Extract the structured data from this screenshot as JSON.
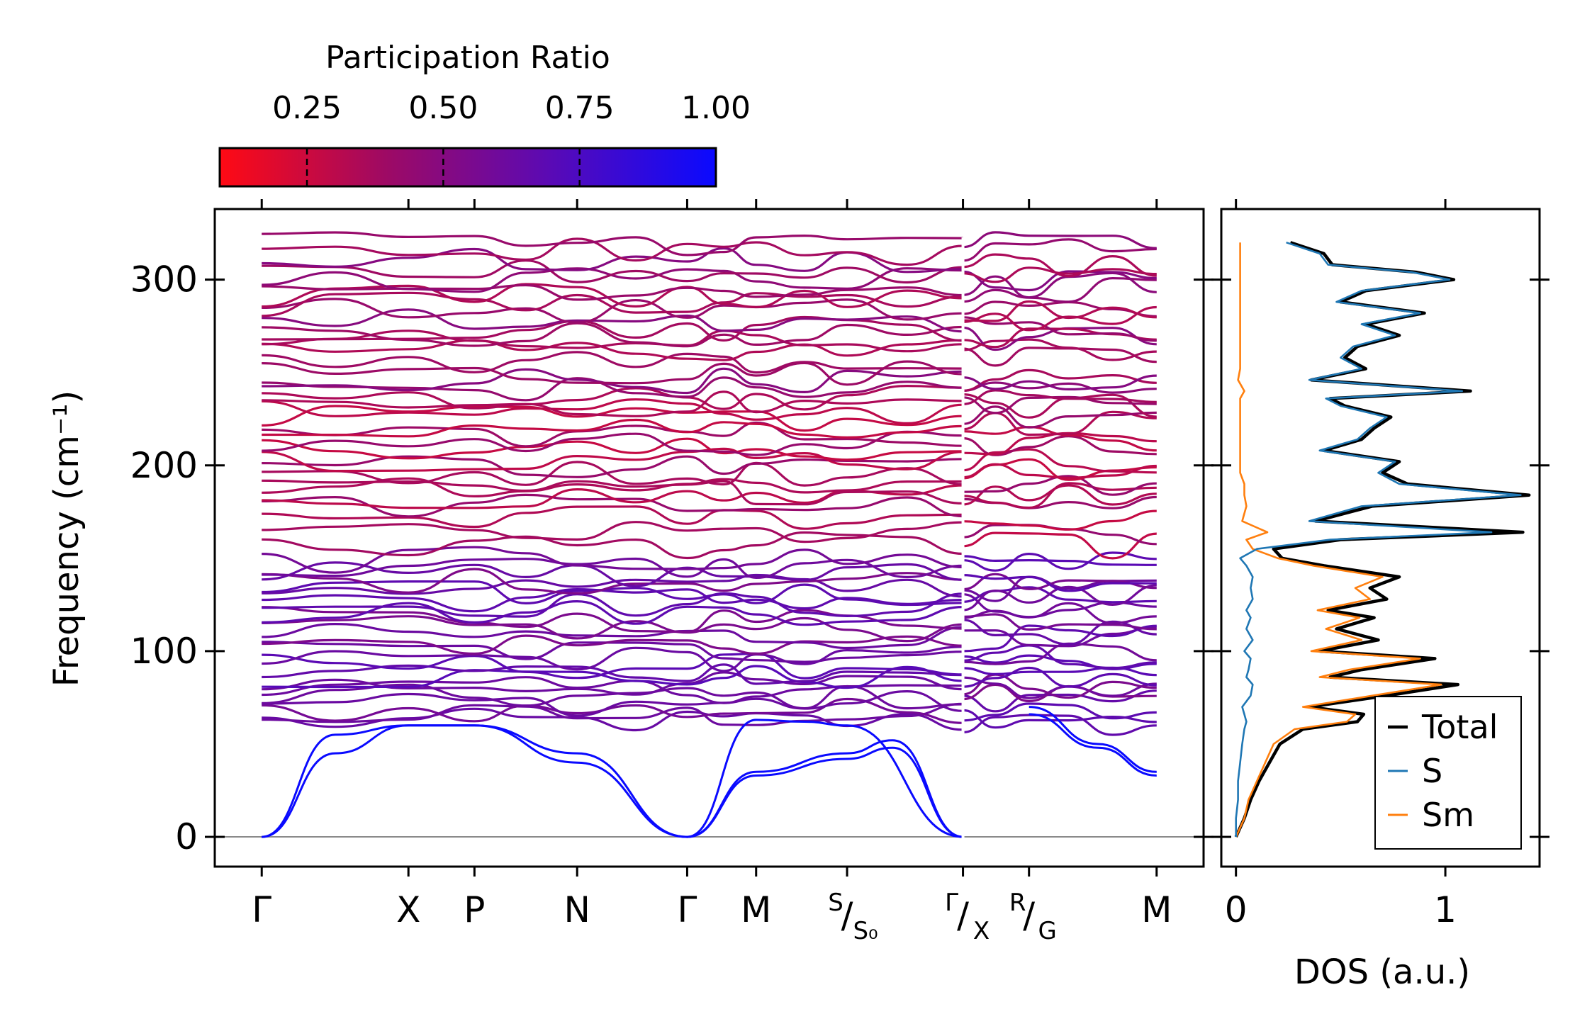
{
  "chart_data": [
    {
      "type": "colorbar",
      "title": "Participation Ratio",
      "range": [
        0.09,
        1.0
      ],
      "ticks": [
        0.25,
        0.5,
        0.75,
        1.0
      ],
      "tick_labels": [
        "0.25",
        "0.50",
        "0.75",
        "1.00"
      ],
      "colormap": [
        "#ff0a14",
        "#9e0a64",
        "#5a0ab5",
        "#0a0aff"
      ]
    },
    {
      "type": "line",
      "title": "",
      "xlabel": "",
      "ylabel": "Frequency (cm⁻¹)",
      "ylim": [
        -16,
        338
      ],
      "yticks": [
        0,
        100,
        200,
        300
      ],
      "ytick_labels": [
        "0",
        "100",
        "200",
        "300"
      ],
      "kpath_labels": [
        {
          "label": "Γ",
          "x": 0.0
        },
        {
          "label": "X",
          "x": 1.0
        },
        {
          "label": "P",
          "x": 1.45
        },
        {
          "label": "N",
          "x": 2.15
        },
        {
          "label": "Γ",
          "x": 2.9
        },
        {
          "label": "M",
          "x": 3.37
        },
        {
          "top": "S",
          "bottom": "S₀",
          "x": 3.99
        },
        {
          "top": "Γ",
          "bottom": "X",
          "x": 4.78
        },
        {
          "top": "R",
          "bottom": "G",
          "x": 5.23
        },
        {
          "label": "M",
          "x": 6.1
        }
      ],
      "xlim": [
        -0.32,
        6.42
      ],
      "discontinuity_at": 4.78,
      "zero_line": 0,
      "acoustic_series": [
        {
          "name": "acoustic-1",
          "x": [
            0,
            0.5,
            1.0,
            1.45,
            2.15,
            2.9
          ],
          "y": [
            0,
            55,
            60,
            60,
            45,
            0
          ],
          "pr": 1.0
        },
        {
          "name": "acoustic-2",
          "x": [
            0,
            0.5,
            1.0,
            1.45,
            2.15,
            2.9
          ],
          "y": [
            0,
            45,
            60,
            60,
            40,
            0
          ],
          "pr": 1.0
        },
        {
          "name": "acoustic-3",
          "x": [
            2.9,
            3.37,
            3.7,
            3.99,
            4.78
          ],
          "y": [
            0,
            63,
            62,
            60,
            0
          ],
          "pr": 1.0
        },
        {
          "name": "acoustic-4",
          "x": [
            2.9,
            3.37,
            3.99,
            4.3,
            4.78
          ],
          "y": [
            0,
            35,
            45,
            52,
            0
          ],
          "pr": 1.0
        },
        {
          "name": "acoustic-5",
          "x": [
            2.9,
            3.37,
            3.99,
            4.3,
            4.78
          ],
          "y": [
            0,
            33,
            42,
            48,
            0
          ],
          "pr": 1.0
        },
        {
          "name": "acoustic-6",
          "x": [
            5.23,
            5.7,
            6.1
          ],
          "y": [
            70,
            50,
            35
          ],
          "pr": 1.0
        },
        {
          "name": "acoustic-7",
          "x": [
            5.23,
            5.7,
            6.1
          ],
          "y": [
            66,
            48,
            33
          ],
          "pr": 1.0
        }
      ],
      "optical_branches": {
        "low_band_frequencies": [
          62,
          65,
          68,
          72,
          75,
          79,
          82,
          86,
          89,
          92,
          96,
          100,
          104,
          108,
          112,
          117,
          121,
          125,
          128,
          131,
          135,
          138,
          141,
          145,
          149
        ],
        "mid_band_frequencies": [
          157,
          163,
          172,
          178,
          183,
          186,
          190,
          196,
          200,
          204,
          208,
          212,
          217,
          221,
          225,
          229,
          233,
          237
        ],
        "high_band_frequencies": [
          241,
          246,
          250,
          256,
          262,
          266,
          270,
          274,
          278,
          283,
          287,
          292,
          296,
          300,
          304,
          310,
          315,
          320
        ]
      }
    },
    {
      "type": "line",
      "title": "",
      "xlabel": "DOS (a.u.)",
      "ylabel": "",
      "xlim": [
        -0.07,
        1.45
      ],
      "ylim": [
        -16,
        338
      ],
      "xticks": [
        0,
        1
      ],
      "xtick_labels": [
        "0",
        "1"
      ],
      "legend_position": "lower-right",
      "series": [
        {
          "name": "Total",
          "color": "#000000",
          "y": [
            0,
            10,
            20,
            30,
            40,
            50,
            58,
            62,
            66,
            70,
            76,
            82,
            86,
            90,
            96,
            100,
            106,
            112,
            118,
            122,
            128,
            134,
            140,
            146,
            150,
            155,
            160,
            164,
            170,
            178,
            184,
            190,
            196,
            202,
            208,
            214,
            220,
            226,
            232,
            236,
            240,
            246,
            252,
            258,
            264,
            270,
            276,
            282,
            288,
            294,
            300,
            304,
            308,
            314,
            320
          ],
          "values": [
            0.0,
            0.04,
            0.07,
            0.11,
            0.16,
            0.21,
            0.32,
            0.58,
            0.61,
            0.35,
            0.72,
            1.06,
            0.45,
            0.6,
            0.95,
            0.4,
            0.68,
            0.48,
            0.66,
            0.44,
            0.72,
            0.64,
            0.78,
            0.42,
            0.22,
            0.18,
            0.5,
            1.37,
            0.38,
            0.65,
            1.4,
            0.82,
            0.7,
            0.78,
            0.42,
            0.6,
            0.66,
            0.74,
            0.52,
            0.45,
            1.12,
            0.36,
            0.62,
            0.52,
            0.58,
            0.78,
            0.62,
            0.9,
            0.5,
            0.62,
            1.04,
            0.86,
            0.46,
            0.42,
            0.26
          ]
        },
        {
          "name": "S",
          "color": "#1f77b4",
          "y": [
            0,
            10,
            20,
            30,
            40,
            50,
            58,
            62,
            66,
            70,
            76,
            82,
            86,
            90,
            96,
            100,
            106,
            112,
            118,
            122,
            128,
            134,
            140,
            146,
            150,
            155,
            160,
            164,
            170,
            178,
            184,
            190,
            196,
            202,
            208,
            214,
            220,
            226,
            232,
            236,
            240,
            246,
            252,
            258,
            264,
            270,
            276,
            282,
            288,
            294,
            300,
            304,
            308,
            314,
            320
          ],
          "values": [
            0.0,
            0.0,
            0.01,
            0.01,
            0.02,
            0.03,
            0.04,
            0.05,
            0.04,
            0.03,
            0.07,
            0.08,
            0.05,
            0.06,
            0.07,
            0.04,
            0.08,
            0.05,
            0.07,
            0.05,
            0.08,
            0.07,
            0.08,
            0.05,
            0.02,
            0.1,
            0.45,
            1.22,
            0.35,
            0.6,
            1.36,
            0.78,
            0.68,
            0.76,
            0.4,
            0.58,
            0.64,
            0.72,
            0.5,
            0.43,
            1.08,
            0.35,
            0.6,
            0.5,
            0.56,
            0.76,
            0.6,
            0.88,
            0.48,
            0.6,
            1.02,
            0.84,
            0.44,
            0.4,
            0.24
          ]
        },
        {
          "name": "Sm",
          "color": "#ff7f0e",
          "y": [
            0,
            10,
            20,
            30,
            40,
            50,
            58,
            62,
            66,
            70,
            76,
            82,
            86,
            90,
            96,
            100,
            106,
            112,
            118,
            122,
            128,
            134,
            140,
            146,
            150,
            155,
            160,
            164,
            170,
            178,
            184,
            190,
            196,
            202,
            208,
            214,
            220,
            226,
            232,
            236,
            240,
            246,
            252,
            258,
            264,
            270,
            276,
            282,
            288,
            294,
            300,
            304,
            308,
            314,
            320
          ],
          "values": [
            0.0,
            0.04,
            0.06,
            0.1,
            0.14,
            0.18,
            0.28,
            0.53,
            0.57,
            0.32,
            0.65,
            0.98,
            0.4,
            0.54,
            0.88,
            0.36,
            0.6,
            0.43,
            0.59,
            0.39,
            0.64,
            0.57,
            0.7,
            0.37,
            0.2,
            0.08,
            0.05,
            0.15,
            0.03,
            0.05,
            0.04,
            0.04,
            0.02,
            0.02,
            0.02,
            0.02,
            0.02,
            0.02,
            0.02,
            0.02,
            0.04,
            0.01,
            0.02,
            0.02,
            0.02,
            0.02,
            0.02,
            0.02,
            0.02,
            0.02,
            0.02,
            0.02,
            0.02,
            0.02,
            0.02
          ]
        }
      ]
    }
  ]
}
